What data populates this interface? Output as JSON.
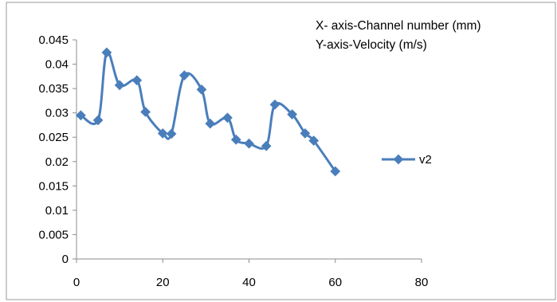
{
  "chart_data": {
    "type": "line",
    "title": "",
    "xlabel": "",
    "ylabel": "",
    "annotations": [
      "X- axis-Channel number (mm)",
      "Y-axis-Velocity (m/s)"
    ],
    "xlim": [
      0,
      80
    ],
    "ylim": [
      0,
      0.045
    ],
    "x_ticks": [
      "0",
      "20",
      "40",
      "60",
      "80"
    ],
    "y_ticks": [
      "0",
      "0.005",
      "0.01",
      "0.015",
      "0.02",
      "0.025",
      "0.03",
      "0.035",
      "0.04",
      "0.045"
    ],
    "grid": false,
    "legend_position": "right",
    "series": [
      {
        "name": "v2",
        "color": "#4a7ebb",
        "marker": "diamond",
        "smooth": true,
        "x": [
          1,
          5,
          7,
          10,
          14,
          16,
          20,
          22,
          25,
          29,
          31,
          35,
          37,
          40,
          44,
          46,
          50,
          53,
          55,
          60
        ],
        "y": [
          0.0295,
          0.0285,
          0.0424,
          0.0357,
          0.0367,
          0.0302,
          0.0258,
          0.0257,
          0.0377,
          0.0348,
          0.0278,
          0.029,
          0.0245,
          0.0237,
          0.0232,
          0.0317,
          0.0297,
          0.0258,
          0.0243,
          0.018
        ]
      }
    ]
  }
}
